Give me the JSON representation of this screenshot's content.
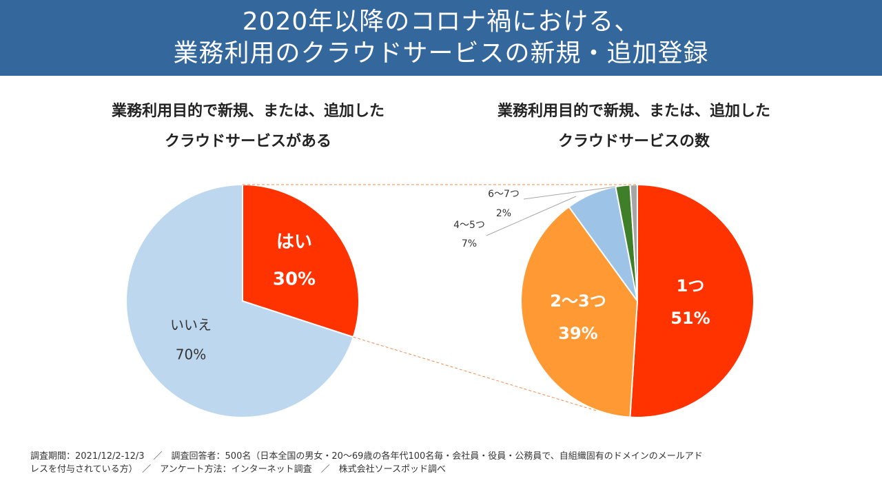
{
  "header": {
    "title_line1": "2020年以降のコロナ禍における、",
    "title_line2": "業務利用のクラウドサービスの新規・追加登録"
  },
  "left_subtitle": {
    "line1": "業務利用目的で新規、または、追加した",
    "line2": "クラウドサービスがある"
  },
  "right_subtitle": {
    "line1": "業務利用目的で新規、または、追加した",
    "line2": "クラウドサービスの数"
  },
  "chart_data": [
    {
      "type": "pie",
      "slices": [
        {
          "label": "はい",
          "value": 30,
          "display": "30%",
          "color": "#ff3300",
          "label_color": "#ffffff",
          "bold": true
        },
        {
          "label": "いいえ",
          "value": 70,
          "display": "70%",
          "color": "#bdd7ee",
          "label_color": "#333333",
          "bold": false
        }
      ]
    },
    {
      "type": "pie",
      "slices": [
        {
          "label": "1つ",
          "value": 51,
          "display": "51%",
          "color": "#ff3300",
          "label_color": "#ffffff",
          "bold": true,
          "placement": "inside"
        },
        {
          "label": "2〜3つ",
          "value": 39,
          "display": "39%",
          "color": "#ff9933",
          "label_color": "#ffffff",
          "bold": true,
          "placement": "inside"
        },
        {
          "label": "4〜5つ",
          "value": 7,
          "display": "7%",
          "color": "#9dc3e6",
          "label_color": "#333333",
          "bold": false,
          "placement": "callout"
        },
        {
          "label": "6〜7つ",
          "value": 2,
          "display": "2%",
          "color": "#3f7f2a",
          "label_color": "#333333",
          "bold": false,
          "placement": "callout"
        },
        {
          "label": "",
          "value": 1,
          "display": "",
          "color": "#a6a6a6",
          "label_color": "#333333",
          "bold": false,
          "placement": "none"
        }
      ]
    }
  ],
  "footer": {
    "line1": "調査期間：2021/12/2-12/3　／　調査回答者：500名（日本全国の男女・20〜69歳の各年代100名毎・会社員・役員・公務員で、自組織固有のドメインのメールアド",
    "line2": "レスを付与されている方）　／　アンケート方法：インターネット調査　／　株式会社ソースポッド調べ"
  }
}
